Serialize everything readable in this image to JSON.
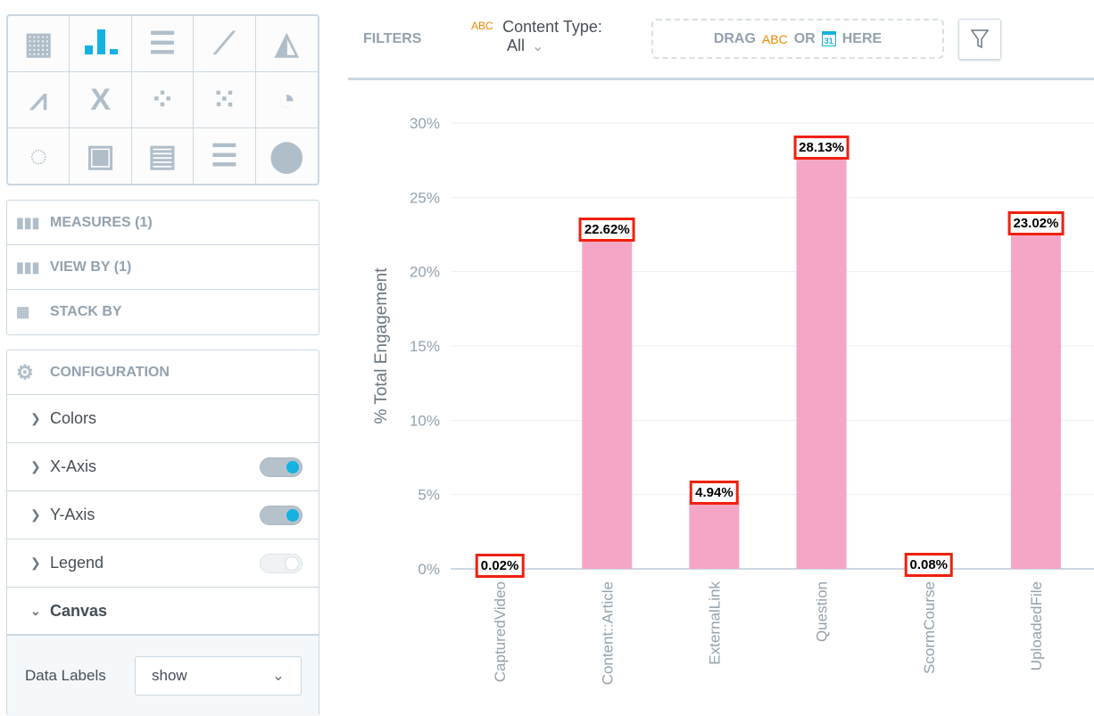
{
  "sidebar": {
    "chart_types": [
      "table",
      "column",
      "bar",
      "line",
      "area",
      "combo",
      "headline",
      "scatter",
      "bubble",
      "pie",
      "donut",
      "treemap",
      "heatmap",
      "bullet",
      "geo"
    ],
    "active_chart_type": "column",
    "buckets": [
      {
        "label": "MEASURES (1)",
        "icon": "measures-icon"
      },
      {
        "label": "VIEW BY (1)",
        "icon": "view-by-icon"
      },
      {
        "label": "STACK BY",
        "icon": "stack-by-icon"
      }
    ],
    "configuration": {
      "title": "CONFIGURATION",
      "items": [
        {
          "label": "Colors"
        },
        {
          "label": "X-Axis",
          "toggle": true
        },
        {
          "label": "Y-Axis",
          "toggle": true
        },
        {
          "label": "Legend",
          "toggle": false
        },
        {
          "label": "Canvas",
          "expanded": true
        }
      ],
      "data_labels_label": "Data Labels",
      "data_labels_value": "show"
    }
  },
  "filters": {
    "title": "FILTERS",
    "attr_badge": "ABC",
    "filter_label": "Content Type:",
    "filter_value": "All",
    "drop_drag": "DRAG",
    "drop_abc": "ABC",
    "drop_or": "OR",
    "drop_cal": "31",
    "drop_here": "HERE"
  },
  "colors": {
    "bar": "#f5a6c7",
    "accent": "#14b2e2",
    "orange": "#f18600"
  },
  "chart_data": {
    "type": "bar",
    "categories": [
      "CapturedVideo",
      "Content::Article",
      "ExternalLink",
      "Question",
      "ScormCourse",
      "UploadedFile"
    ],
    "values": [
      0.02,
      22.62,
      4.94,
      28.13,
      0.08,
      23.02
    ],
    "data_labels": [
      "0.02%",
      "22.62%",
      "4.94%",
      "28.13%",
      "0.08%",
      "23.02%"
    ],
    "ylabel": "% Total Engagement",
    "ylim": [
      0,
      30
    ],
    "yticks": [
      "0%",
      "5%",
      "10%",
      "15%",
      "20%",
      "25%",
      "30%"
    ],
    "grid": true
  }
}
